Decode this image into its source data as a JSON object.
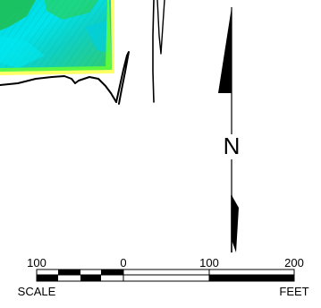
{
  "map": {
    "contour_colors": {
      "fill_cyan": "#00e0e8",
      "fill_green": "#33cc33",
      "fill_teal": "#00c8b4",
      "edge_yellow": "#ffff33",
      "edge_green": "#66ff33"
    },
    "north_arrow": {
      "label": "N",
      "icon": "north-arrow-icon"
    },
    "scale_bar": {
      "tick_labels": [
        "100",
        "0",
        "100",
        "200"
      ],
      "left_caption": "SCALE",
      "right_caption": "FEET"
    }
  }
}
